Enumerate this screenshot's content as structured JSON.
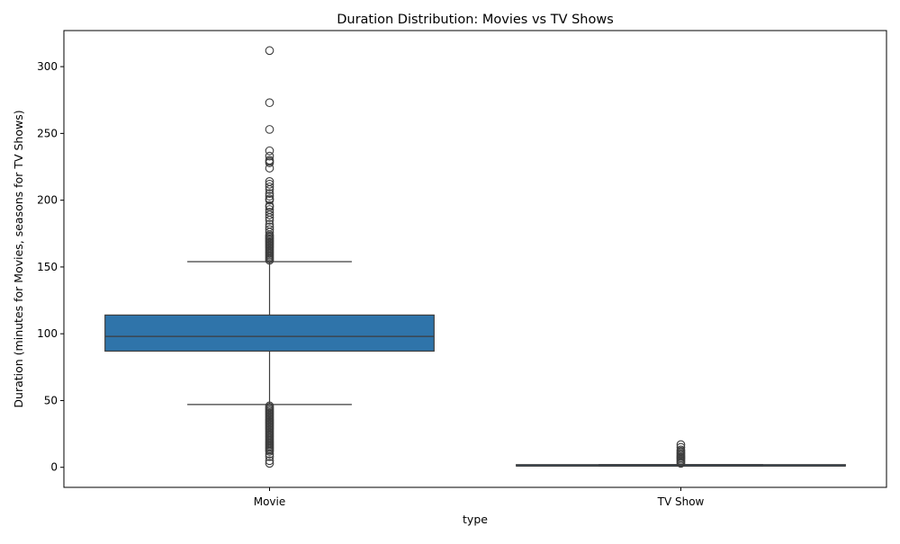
{
  "chart_data": {
    "type": "box",
    "title": "Duration Distribution: Movies vs TV Shows",
    "xlabel": "type",
    "ylabel": "Duration (minutes for Movies, seasons for TV Shows)",
    "ylim": [
      -15,
      327
    ],
    "yticks": [
      0,
      50,
      100,
      150,
      200,
      250,
      300
    ],
    "categories": [
      "Movie",
      "TV Show"
    ],
    "grid": false,
    "legend": "none",
    "colors": {
      "box_fill": "#2f74aa",
      "box_edge": "#3d3d3d",
      "outlier_edge": "#3d3d3d"
    },
    "boxes": [
      {
        "category": "Movie",
        "whisker_low": 47,
        "q1": 87,
        "median": 98,
        "q3": 114,
        "whisker_high": 154,
        "outliers": [
          3,
          5,
          8,
          10,
          12,
          13,
          14,
          15,
          16,
          17,
          18,
          19,
          20,
          21,
          22,
          23,
          24,
          25,
          26,
          27,
          28,
          29,
          30,
          31,
          32,
          33,
          34,
          35,
          36,
          37,
          38,
          39,
          40,
          41,
          42,
          43,
          44,
          45,
          46,
          155,
          156,
          157,
          158,
          159,
          160,
          161,
          162,
          163,
          164,
          165,
          166,
          167,
          168,
          169,
          170,
          171,
          172,
          173,
          174,
          176,
          178,
          180,
          182,
          185,
          187,
          189,
          191,
          193,
          195,
          196,
          200,
          201,
          203,
          205,
          208,
          210,
          212,
          214,
          224,
          228,
          229,
          230,
          233,
          237,
          253,
          273,
          312
        ]
      },
      {
        "category": "TV Show",
        "whisker_low": 1,
        "q1": 1,
        "median": 1,
        "q3": 2,
        "whisker_high": 2,
        "outliers": [
          3,
          4,
          5,
          6,
          7,
          8,
          9,
          10,
          11,
          12,
          13,
          15,
          17
        ]
      }
    ]
  }
}
